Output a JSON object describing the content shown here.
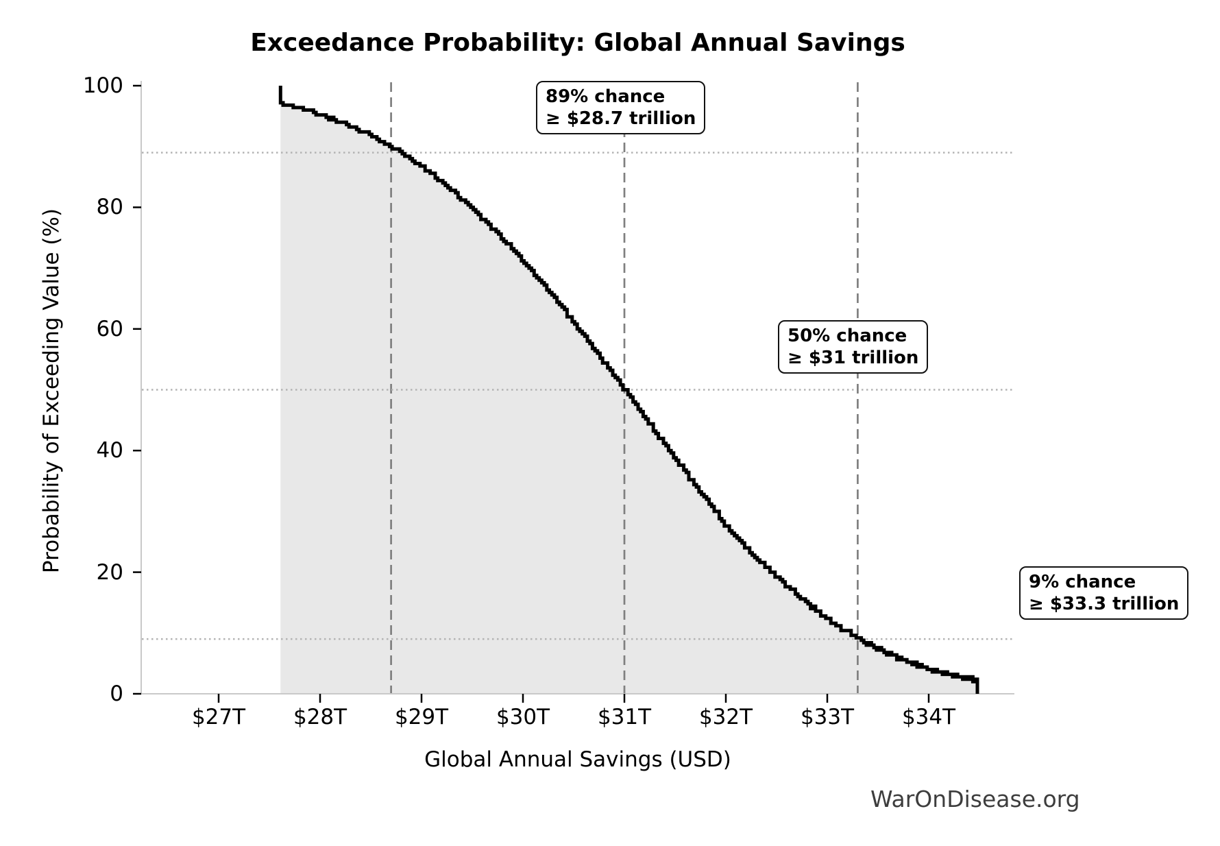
{
  "title": "Exceedance Probability: Global Annual Savings",
  "watermark": "WarOnDisease.org",
  "chart_data": {
    "type": "line",
    "subtype": "empirical-exceedance-step-curve",
    "title": "Exceedance Probability: Global Annual Savings",
    "xlabel": "Global Annual Savings (USD)",
    "ylabel": "Probability of Exceeding Value (%)",
    "x_ticks": [
      27,
      28,
      29,
      30,
      31,
      32,
      33,
      34
    ],
    "x_tick_labels": [
      "$27T",
      "$28T",
      "$29T",
      "$30T",
      "$31T",
      "$32T",
      "$33T",
      "$34T"
    ],
    "y_ticks": [
      0,
      20,
      40,
      60,
      80,
      100
    ],
    "y_tick_labels": [
      "0",
      "20",
      "40",
      "60",
      "80",
      "100"
    ],
    "xlim": [
      26.24,
      34.85
    ],
    "ylim": [
      0,
      100
    ],
    "grid": "threshold-lines-only",
    "legend": "none",
    "curve": {
      "name": "Probability of exceeding value",
      "x_trillions": [
        27.61,
        27.75,
        28.0,
        28.25,
        28.5,
        28.75,
        29.0,
        29.25,
        29.5,
        29.75,
        30.0,
        30.25,
        30.5,
        30.75,
        31.0,
        31.25,
        31.5,
        31.75,
        32.0,
        32.25,
        32.5,
        32.75,
        33.0,
        33.25,
        33.5,
        33.75,
        34.0,
        34.25,
        34.48
      ],
      "p_percent": [
        97.0,
        96.5,
        95.2,
        93.7,
        91.8,
        89.4,
        86.7,
        83.5,
        79.8,
        75.6,
        71.1,
        66.2,
        61.0,
        55.5,
        50.0,
        44.2,
        38.6,
        33.1,
        27.6,
        23.0,
        19.2,
        15.5,
        12.2,
        9.6,
        7.3,
        5.5,
        4.1,
        2.9,
        2.2
      ],
      "start_p": 100,
      "end_p": 0
    },
    "annotations": [
      {
        "line1": "89% chance",
        "line2": "≥ $28.7 trillion",
        "x": 28.7,
        "p": 89
      },
      {
        "line1": "50% chance",
        "line2": "≥ $31 trillion",
        "x": 31.0,
        "p": 50
      },
      {
        "line1": "9% chance",
        "line2": "≥ $33.3 trillion",
        "x": 33.3,
        "p": 9
      }
    ],
    "colors": {
      "curve": "#000000",
      "fill": "#e8e8e8",
      "dashed_vline": "#7f7f7f",
      "dotted_hline": "#b3b3b3",
      "spine": "#c9c9c9",
      "tick": "#000000",
      "watermark": "#3d3d3d",
      "background": "#ffffff"
    }
  }
}
